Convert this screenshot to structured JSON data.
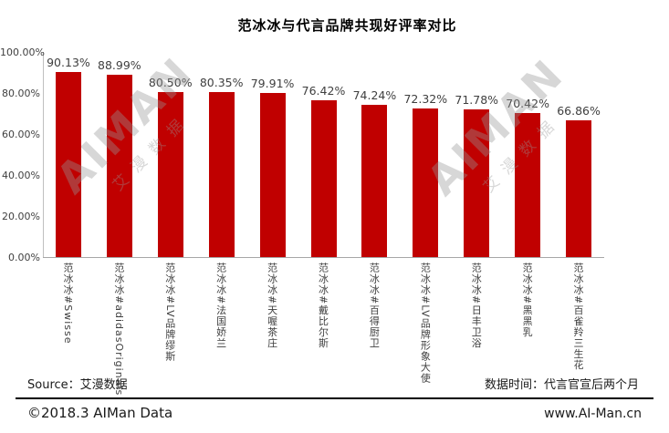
{
  "title": "范冰冰与代言品牌共现好评率对比",
  "chart_data": {
    "type": "bar",
    "title": "范冰冰与代言品牌共现好评率对比",
    "categories": [
      "范冰冰#Swisse",
      "范冰冰#adidasOriginals",
      "范冰冰#LV品牌缪斯",
      "范冰冰#法国娇兰",
      "范冰冰#天喔茶庄",
      "范冰冰#戴比尔斯",
      "范冰冰#百得厨卫",
      "范冰冰#LV品牌形象大使",
      "范冰冰#日丰卫浴",
      "范冰冰#黑黑乳",
      "范冰冰#百雀羚三生花"
    ],
    "values": [
      90.13,
      88.99,
      80.5,
      80.35,
      79.91,
      76.42,
      74.24,
      72.32,
      71.78,
      70.42,
      66.86
    ],
    "value_labels": [
      "90.13%",
      "88.99%",
      "80.50%",
      "80.35%",
      "79.91%",
      "76.42%",
      "74.24%",
      "72.32%",
      "71.78%",
      "70.42%",
      "66.86%"
    ],
    "xlabel": "",
    "ylabel": "",
    "ylim": [
      0,
      100
    ],
    "ytick_values": [
      0,
      20,
      40,
      60,
      80,
      100
    ],
    "ytick_labels": [
      "0.00%",
      "20.00%",
      "40.00%",
      "60.00%",
      "80.00%",
      "100.00%"
    ],
    "grid": false,
    "legend": "none",
    "bar_color": "#c00000"
  },
  "watermark": {
    "brand": "AIMAN",
    "cn": "艾漫数据"
  },
  "footer": {
    "source": "Source：艾漫数据",
    "data_time": "数据时间：代言官宣后两个月",
    "copyright": "©2018.3  AIMan  Data",
    "website": "www.AI-Man.cn"
  }
}
